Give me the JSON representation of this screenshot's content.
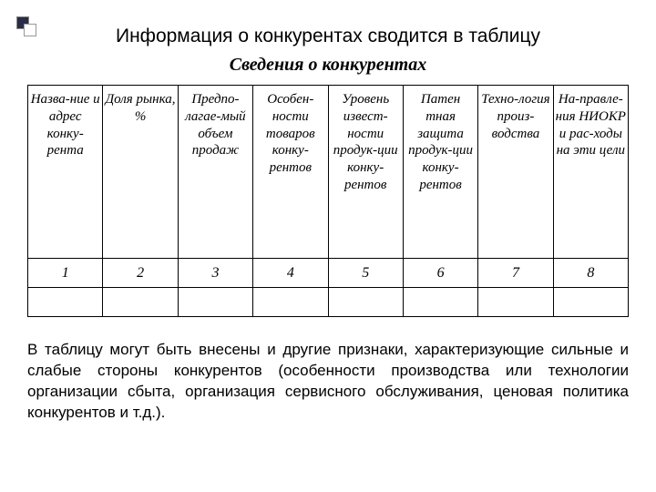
{
  "heading": "Информация о конкурентах сводится в таблицу",
  "subtitle": "Сведения о конкурентах",
  "table": {
    "columns": [
      "Назва-ние и адрес конку-рента",
      "Доля рынка, %",
      "Предпо-лагае-мый объем продаж",
      "Особен-ности товаров конку-рентов",
      "Уровень извест-ности продук-ции конку-рентов",
      "Патен тная защита продук-ции конку-рентов",
      "Техно-логия произ-водства",
      "На-правле-ния НИОКР и рас-ходы на эти цели"
    ],
    "numbers": [
      "1",
      "2",
      "3",
      "4",
      "5",
      "6",
      "7",
      "8"
    ],
    "col_widths": [
      "12.5%",
      "12.5%",
      "12.5%",
      "12.5%",
      "12.5%",
      "12.5%",
      "12.5%",
      "12.5%"
    ]
  },
  "bottom_text": "В таблицу могут быть внесены и другие признаки, характеризующие сильные и слабые стороны конкурентов (особенности производства или технологии организации сбыта, организация сервисного обслуживания, ценовая политика конкурентов и т.д.).",
  "colors": {
    "background": "#ffffff",
    "text": "#000000",
    "border": "#000000",
    "deco_dark": "#2a2a4a"
  },
  "fonts": {
    "heading_family": "Arial",
    "heading_size": 21,
    "table_family": "Times New Roman",
    "table_header_size": 15,
    "body_family": "Arial",
    "body_size": 17
  }
}
